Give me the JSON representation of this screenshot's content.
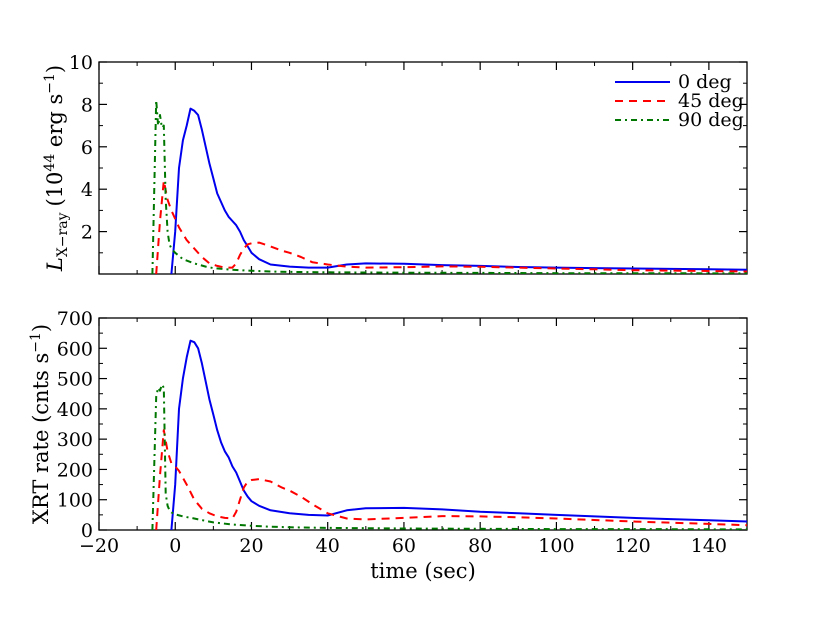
{
  "chart_data": [
    {
      "type": "line",
      "panel": "top",
      "ylabel": "L_X−ray (10^44 erg s^−1)",
      "ylabel_parts": {
        "main": "L",
        "sub": "X−ray",
        "unit_pre": "(10",
        "exp": "44",
        "unit_mid": " erg s",
        "exp2": "−1",
        "unit_post": ")"
      },
      "xlim": [
        -20,
        150
      ],
      "ylim": [
        0,
        10
      ],
      "yticks": [
        2,
        4,
        6,
        8,
        10
      ],
      "ytick_labels": [
        "2",
        "4",
        "6",
        "8",
        "10"
      ],
      "legend": "top-right",
      "series": [
        {
          "name": "0 deg",
          "color": "#0000ee",
          "style": "solid",
          "x": [
            -1,
            0,
            1,
            2,
            3,
            4,
            5,
            6,
            7,
            8,
            9,
            10,
            11,
            12,
            13,
            14,
            15,
            16,
            17,
            18,
            19,
            20,
            22,
            25,
            30,
            35,
            40,
            45,
            50,
            60,
            70,
            80,
            90,
            100,
            110,
            120,
            130,
            140,
            150
          ],
          "y": [
            0,
            2.0,
            5.0,
            6.3,
            7.0,
            7.8,
            7.7,
            7.5,
            6.8,
            6.0,
            5.2,
            4.5,
            3.8,
            3.4,
            3.0,
            2.7,
            2.5,
            2.3,
            2.0,
            1.6,
            1.3,
            1.0,
            0.7,
            0.45,
            0.35,
            0.3,
            0.3,
            0.45,
            0.5,
            0.48,
            0.42,
            0.38,
            0.33,
            0.3,
            0.28,
            0.26,
            0.24,
            0.22,
            0.2
          ]
        },
        {
          "name": "45 deg",
          "color": "#ff0000",
          "style": "dashed",
          "x": [
            -5,
            -4,
            -3,
            -2,
            -1,
            0,
            1,
            3,
            5,
            7,
            9,
            11,
            13,
            15,
            16,
            17,
            18,
            19,
            20,
            22,
            25,
            28,
            30,
            33,
            36,
            40,
            45,
            50,
            60,
            70,
            80,
            90,
            100,
            110,
            120,
            130,
            140,
            150
          ],
          "y": [
            0,
            2.5,
            4.4,
            3.5,
            3.0,
            2.6,
            2.2,
            1.6,
            1.2,
            0.8,
            0.5,
            0.38,
            0.3,
            0.3,
            0.5,
            0.9,
            1.2,
            1.4,
            1.45,
            1.48,
            1.3,
            1.1,
            1.0,
            0.8,
            0.55,
            0.45,
            0.35,
            0.3,
            0.32,
            0.36,
            0.34,
            0.3,
            0.26,
            0.22,
            0.18,
            0.16,
            0.14,
            0.12
          ]
        },
        {
          "name": "90 deg",
          "color": "#007700",
          "style": "dashdot",
          "x": [
            -6,
            -5,
            -4.5,
            -4,
            -3.5,
            -3,
            -2.5,
            -2,
            -1.5,
            -1,
            0,
            2,
            5,
            8,
            10,
            15,
            20,
            25,
            30,
            40,
            50,
            60,
            80,
            100,
            120,
            150
          ],
          "y": [
            0,
            8.2,
            7.0,
            7.5,
            6.9,
            7.0,
            3.5,
            2.0,
            1.4,
            1.2,
            1.0,
            0.7,
            0.5,
            0.35,
            0.28,
            0.2,
            0.15,
            0.12,
            0.1,
            0.08,
            0.07,
            0.06,
            0.05,
            0.04,
            0.04,
            0.03
          ]
        }
      ]
    },
    {
      "type": "line",
      "panel": "bottom",
      "ylabel": "XRT rate (cnts s^−1)",
      "ylabel_parts": {
        "main": "XRT rate (cnts s",
        "exp": "−1",
        "post": ")"
      },
      "xlabel": "time (sec)",
      "xlim": [
        -20,
        150
      ],
      "ylim": [
        0,
        700
      ],
      "xticks": [
        -20,
        0,
        20,
        40,
        60,
        80,
        100,
        120,
        140
      ],
      "xtick_labels": [
        "−20",
        "0",
        "20",
        "40",
        "60",
        "80",
        "100",
        "120",
        "140"
      ],
      "yticks": [
        0,
        100,
        200,
        300,
        400,
        500,
        600,
        700
      ],
      "ytick_labels": [
        "0",
        "100",
        "200",
        "300",
        "400",
        "500",
        "600",
        "700"
      ],
      "series": [
        {
          "name": "0 deg",
          "color": "#0000ee",
          "style": "solid",
          "x": [
            -1,
            0,
            1,
            2,
            3,
            4,
            5,
            6,
            7,
            8,
            9,
            10,
            11,
            12,
            13,
            14,
            15,
            16,
            17,
            18,
            19,
            20,
            22,
            25,
            30,
            35,
            40,
            45,
            50,
            60,
            70,
            80,
            90,
            100,
            110,
            120,
            130,
            140,
            150
          ],
          "y": [
            0,
            150,
            400,
            500,
            570,
            625,
            620,
            600,
            550,
            490,
            430,
            380,
            330,
            290,
            260,
            240,
            210,
            190,
            160,
            130,
            110,
            95,
            80,
            65,
            55,
            50,
            48,
            65,
            72,
            73,
            68,
            60,
            55,
            50,
            45,
            40,
            36,
            32,
            28
          ]
        },
        {
          "name": "45 deg",
          "color": "#ff0000",
          "style": "dashed",
          "x": [
            -5,
            -4,
            -3,
            -2,
            -1,
            0,
            1,
            3,
            5,
            7,
            9,
            11,
            13,
            15,
            16,
            17,
            18,
            19,
            20,
            22,
            25,
            28,
            30,
            33,
            36,
            40,
            45,
            50,
            60,
            70,
            80,
            90,
            100,
            110,
            120,
            130,
            140,
            150
          ],
          "y": [
            0,
            180,
            330,
            260,
            220,
            210,
            195,
            150,
            100,
            70,
            55,
            45,
            40,
            38,
            60,
            100,
            140,
            160,
            165,
            168,
            160,
            140,
            130,
            110,
            85,
            55,
            38,
            35,
            40,
            46,
            45,
            42,
            38,
            33,
            28,
            24,
            20,
            16
          ]
        },
        {
          "name": "90 deg",
          "color": "#007700",
          "style": "dashdot",
          "x": [
            -6,
            -5,
            -4.5,
            -4,
            -3.5,
            -3,
            -2.5,
            -2,
            -1.5,
            -1,
            0,
            2,
            5,
            8,
            10,
            15,
            20,
            25,
            30,
            40,
            50,
            60,
            80,
            100,
            120,
            150
          ],
          "y": [
            0,
            440,
            470,
            460,
            480,
            470,
            120,
            80,
            65,
            58,
            52,
            45,
            38,
            30,
            25,
            18,
            14,
            11,
            9,
            7,
            6,
            5,
            4,
            3,
            3,
            2
          ]
        }
      ]
    }
  ]
}
